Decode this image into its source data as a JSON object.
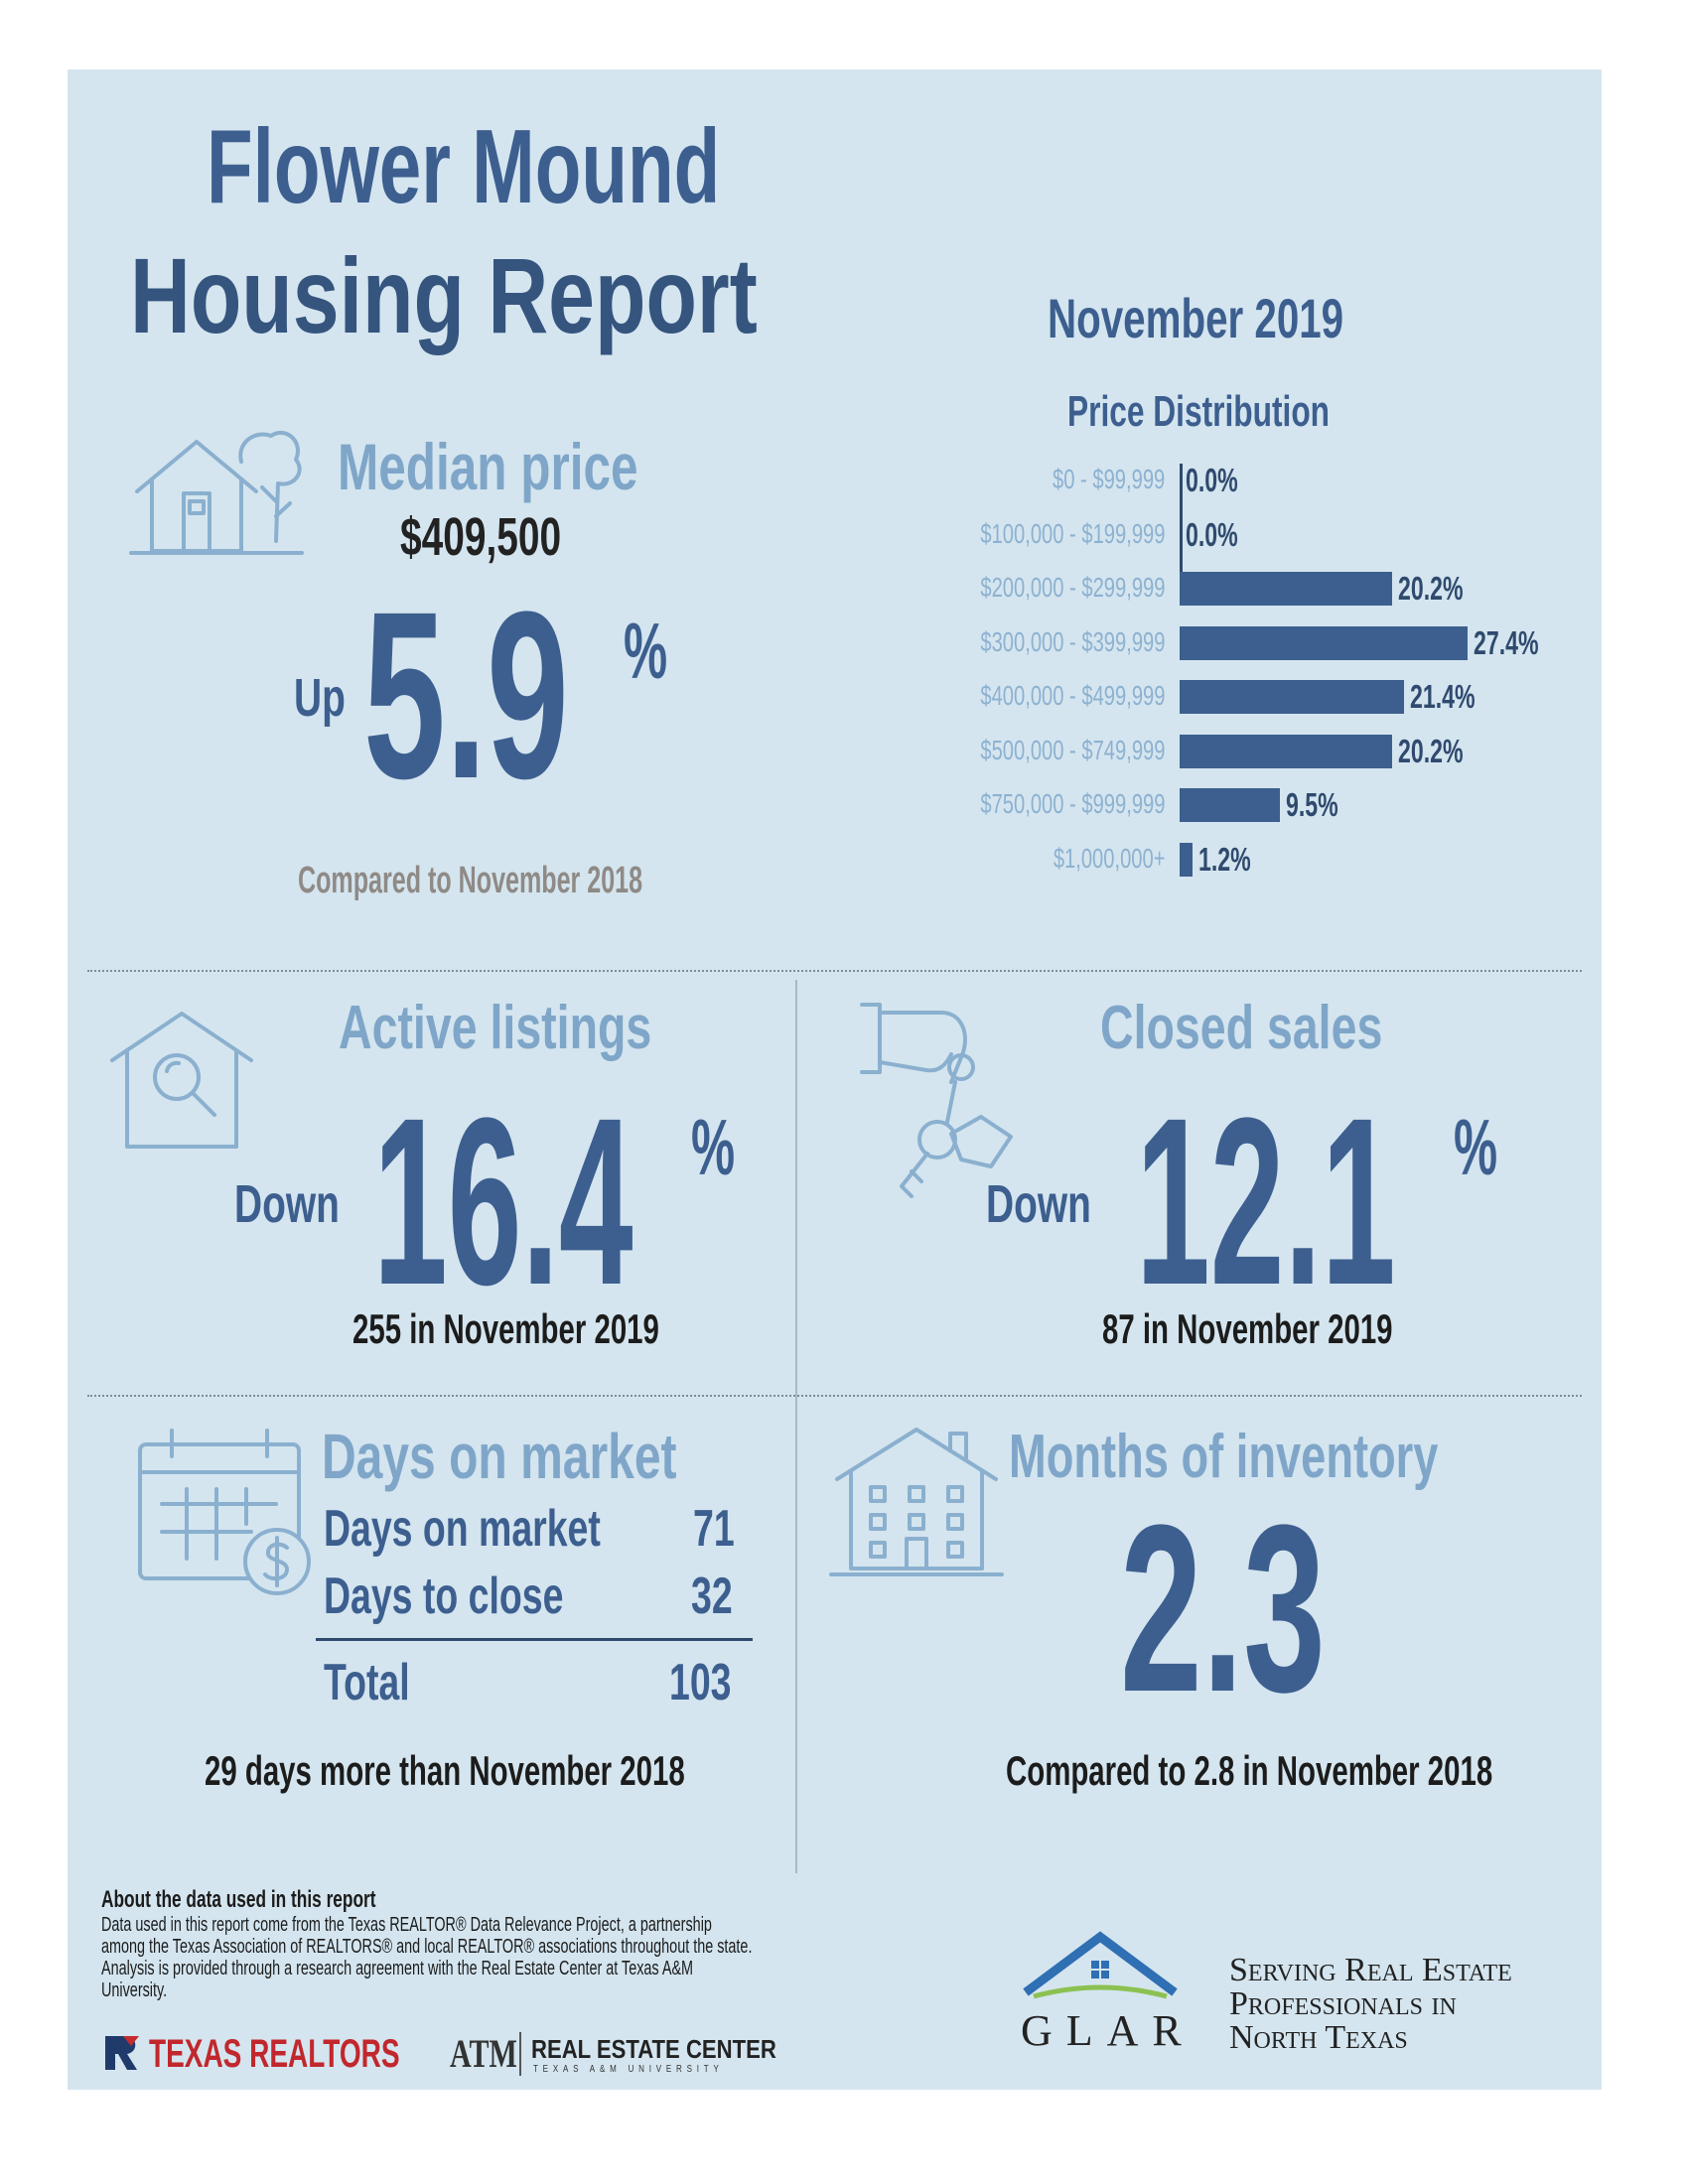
{
  "header": {
    "title_line1": "Flower Mound",
    "title_line2": "Housing Report",
    "period": "November 2019"
  },
  "median_price": {
    "heading": "Median price",
    "price": "$409,500",
    "direction": "Up",
    "change_value": "5.9",
    "change_unit": "%",
    "comparison": "Compared to November 2018"
  },
  "chart_data": {
    "type": "bar",
    "title": "Price Distribution",
    "orientation": "horizontal",
    "categories": [
      "$0 - $99,999",
      "$100,000 - $199,999",
      "$200,000 - $299,999",
      "$300,000 - $399,999",
      "$400,000 - $499,999",
      "$500,000 - $749,999",
      "$750,000 - $999,999",
      "$1,000,000+"
    ],
    "values": [
      0.0,
      0.0,
      20.2,
      27.4,
      21.4,
      20.2,
      9.5,
      1.2
    ],
    "value_labels": [
      "0.0%",
      "0.0%",
      "20.2%",
      "27.4%",
      "21.4%",
      "20.2%",
      "9.5%",
      "1.2%"
    ],
    "unit": "%",
    "color": "#3d5f8f"
  },
  "active_listings": {
    "heading": "Active listings",
    "direction": "Down",
    "change_value": "16.4",
    "change_unit": "%",
    "detail": "255 in November 2019"
  },
  "closed_sales": {
    "heading": "Closed sales",
    "direction": "Down",
    "change_value": "12.1",
    "change_unit": "%",
    "detail": "87 in November 2019"
  },
  "days_on_market": {
    "heading": "Days on market",
    "rows": [
      {
        "label": "Days on market",
        "value": "71"
      },
      {
        "label": "Days to close",
        "value": "32"
      }
    ],
    "total_label": "Total",
    "total_value": "103",
    "comparison": "29 days more than November 2018"
  },
  "inventory": {
    "heading": "Months of inventory",
    "value": "2.3",
    "comparison": "Compared to 2.8 in November 2018"
  },
  "footer": {
    "about_title": "About the data used in this report",
    "about_text": "Data used in this report come from the Texas REALTOR® Data Relevance Project, a partnership among the Texas Association of REALTORS® and local REALTOR® associations throughout the state. Analysis is provided through a research agreement with the Real Estate Center at Texas A&M University.",
    "logo_texas_realtors": "TEXAS REALTORS",
    "logo_tamu": "ATM",
    "logo_rec": "REAL ESTATE CENTER",
    "logo_rec_sub": "TEXAS A&M UNIVERSITY",
    "glar": "GLAR",
    "glar_tagline": [
      "Serving Real Estate",
      "Professionals in",
      "North Texas"
    ]
  },
  "colors": {
    "background": "#d4e5ef",
    "navy": "#3d5f8f",
    "light_blue": "#7fa6c8",
    "roof_blue": "#2f6fb3",
    "roof_green": "#8cc152"
  },
  "icons": [
    "house-tree-icon",
    "house-search-icon",
    "hand-keys-icon",
    "calendar-dollar-icon",
    "townhouse-icon"
  ]
}
